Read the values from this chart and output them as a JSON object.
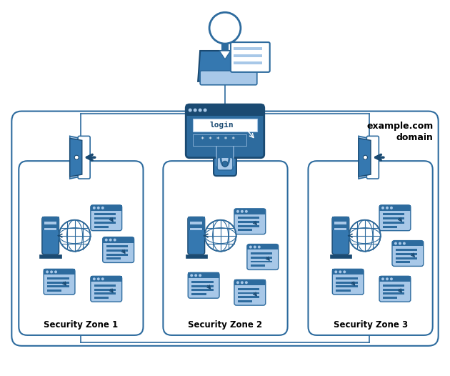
{
  "bg_color": "#ffffff",
  "border_color": "#2d6b9e",
  "fill_light": "#a8c8e8",
  "fill_mid": "#2d6b9e",
  "fill_dark": "#1a4a72",
  "fill_body": "#3578b0",
  "line_color": "#2d6b9e",
  "text_color": "#000000",
  "domain_label": "example.com\ndomain",
  "zone_labels": [
    "Security Zone 1",
    "Security Zone 2",
    "Security Zone 3"
  ],
  "figsize": [
    6.3,
    5.26
  ],
  "dpi": 100
}
